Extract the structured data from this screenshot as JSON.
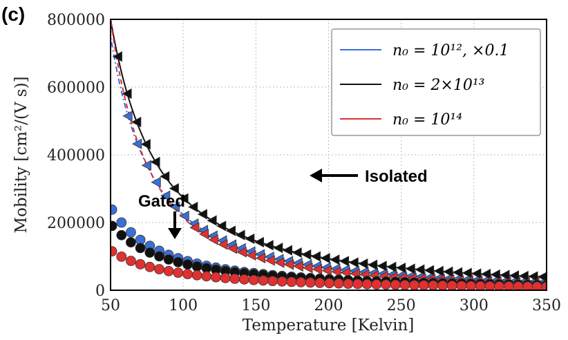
{
  "panel_label": "(c)",
  "chart_data": {
    "type": "scatter",
    "title": "",
    "xlabel": "Temperature [Kelvin]",
    "ylabel": "Mobility [cm²/(V s)]",
    "xlim": [
      50,
      350
    ],
    "ylim": [
      0,
      800000
    ],
    "xticks": [
      50,
      100,
      150,
      200,
      250,
      300,
      350
    ],
    "xtick_labels": [
      "50",
      "100",
      "150",
      "200",
      "250",
      "300",
      "350"
    ],
    "yticks": [
      0,
      200000,
      400000,
      600000,
      800000
    ],
    "ytick_labels": [
      "0",
      "200000",
      "400000",
      "600000",
      "800000"
    ],
    "grid": true,
    "legend_position": "top-right",
    "legend": [
      {
        "label": "n₀ = 10¹², ×0.1",
        "color": "#3b6fd6"
      },
      {
        "label": "n₀ = 2×10¹³",
        "color": "#111111"
      },
      {
        "label": "n₀ = 10¹⁴",
        "color": "#e03030"
      }
    ],
    "annotations": [
      {
        "text": "Isolated",
        "points_to": [
          180,
          340000
        ]
      },
      {
        "text": "Gated",
        "points_to": [
          88,
          155000
        ]
      }
    ],
    "model": {
      "form": "y = A / T^b",
      "note": "curves pass through markers"
    },
    "series": [
      {
        "name": "Isolated n0=1e12 x0.1",
        "group": "isolated",
        "color": "#3b6fd6",
        "line": "dashdot",
        "A": 750000,
        "b": 1.75,
        "x_start": 62,
        "x_end": 350,
        "step": 6.5
      },
      {
        "name": "Isolated n0=2e13",
        "group": "isolated",
        "color": "#111111",
        "line": "solid",
        "A": 800000,
        "b": 1.55,
        "x_start": 55,
        "x_end": 350,
        "step": 6.5
      },
      {
        "name": "Isolated n0=1e14",
        "group": "isolated",
        "color": "#e03030",
        "line": "dashed",
        "A": 800000,
        "b": 1.9,
        "x_start": 108,
        "x_end": 350,
        "step": 6.5
      },
      {
        "name": "Gated n0=1e12 x0.1",
        "group": "gated",
        "color": "#3b6fd6",
        "A": 245000,
        "b": 1.45,
        "x_start": 51,
        "x_end": 350,
        "step": 6.5
      },
      {
        "name": "Gated n0=2e13",
        "group": "gated",
        "color": "#111111",
        "A": 195000,
        "b": 1.3,
        "x_start": 51,
        "x_end": 350,
        "step": 6.5
      },
      {
        "name": "Gated n0=1e14",
        "group": "gated",
        "color": "#e03030",
        "A": 118000,
        "b": 1.25,
        "x_start": 51,
        "x_end": 350,
        "step": 6.5
      }
    ]
  }
}
